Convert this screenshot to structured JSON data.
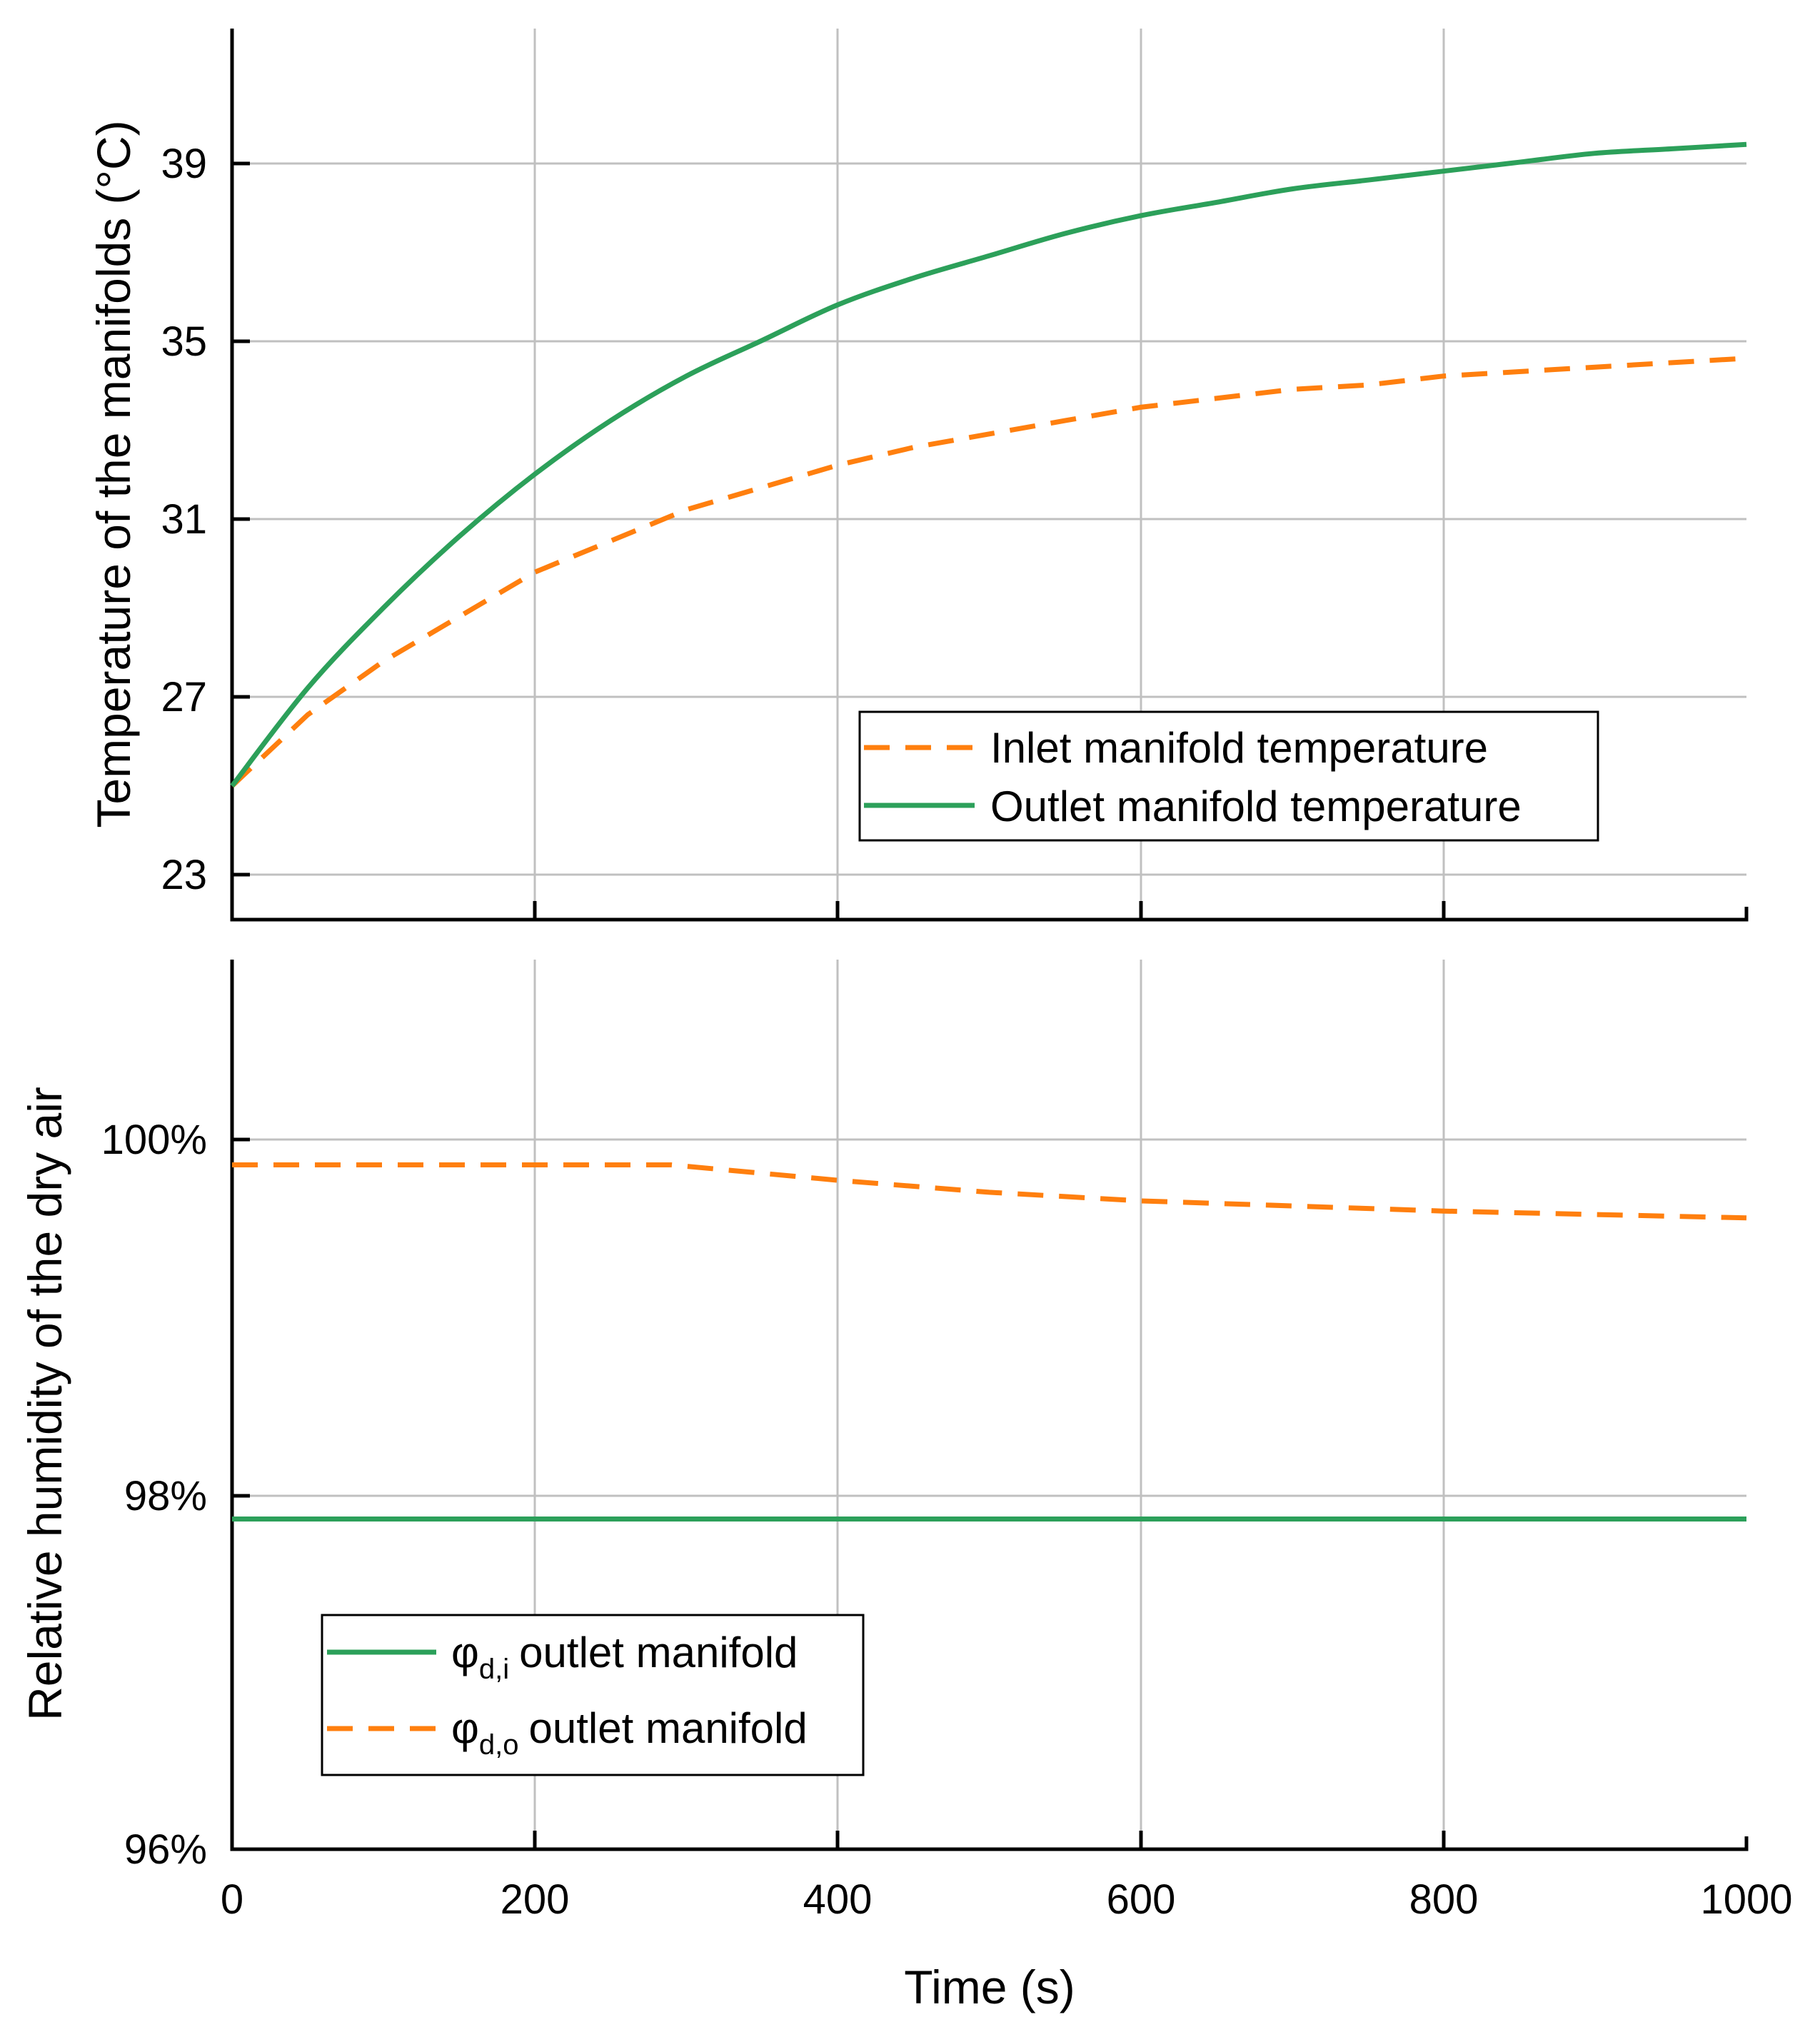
{
  "chart_data": [
    {
      "type": "line",
      "xlabel": "",
      "ylabel": "Temperature of the manifolds (°C)",
      "xlim": [
        0,
        1000
      ],
      "ylim": [
        22,
        42
      ],
      "xticks": [
        0,
        200,
        400,
        600,
        800,
        1000
      ],
      "yticks": [
        23,
        27,
        31,
        35,
        39
      ],
      "ytick_labels": [
        "23",
        "27",
        "31",
        "35",
        "39"
      ],
      "grid": true,
      "legend_position": "bottom-right",
      "series": [
        {
          "name": "Inlet manifold temperature",
          "style": "dashed",
          "color": "#ff7f0e",
          "x": [
            0,
            50,
            100,
            150,
            200,
            250,
            300,
            350,
            400,
            450,
            500,
            550,
            600,
            650,
            700,
            750,
            800,
            850,
            900,
            950,
            1000
          ],
          "y": [
            25.0,
            26.6,
            27.8,
            28.8,
            29.8,
            30.5,
            31.2,
            31.7,
            32.2,
            32.6,
            32.9,
            33.2,
            33.5,
            33.7,
            33.9,
            34.0,
            34.2,
            34.3,
            34.4,
            34.5,
            34.6
          ]
        },
        {
          "name": "Outlet manifold temperature",
          "style": "solid",
          "color": "#2ca05a",
          "x": [
            0,
            50,
            100,
            150,
            200,
            250,
            300,
            350,
            400,
            450,
            500,
            550,
            600,
            650,
            700,
            750,
            800,
            850,
            900,
            950,
            1000
          ],
          "y": [
            25.0,
            27.2,
            29.0,
            30.6,
            32.0,
            33.2,
            34.2,
            35.0,
            35.8,
            36.4,
            36.9,
            37.4,
            37.8,
            38.1,
            38.4,
            38.6,
            38.8,
            39.0,
            39.2,
            39.3,
            39.4
          ]
        }
      ]
    },
    {
      "type": "line",
      "xlabel": "Time (s)",
      "ylabel": "Relative humidity of the dry air",
      "xlim": [
        0,
        1000
      ],
      "ylim": [
        96,
        101.2
      ],
      "xticks": [
        0,
        200,
        400,
        600,
        800,
        1000
      ],
      "xtick_labels": [
        "0",
        "200",
        "400",
        "600",
        "800",
        "1000"
      ],
      "yticks": [
        96,
        98,
        100
      ],
      "ytick_labels": [
        "96%",
        "98%",
        "100%"
      ],
      "grid": true,
      "legend_position": "bottom-left",
      "series": [
        {
          "name": "outlet manifold",
          "label_symbol": "φ",
          "label_subscript": "d,i",
          "style": "solid",
          "color": "#2ca05a",
          "x": [
            0,
            1000
          ],
          "y": [
            97.93,
            97.93
          ]
        },
        {
          "name": "outlet manifold",
          "label_symbol": "φ",
          "label_subscript": "d,o",
          "style": "dashed",
          "color": "#ff7f0e",
          "x": [
            0,
            290,
            400,
            500,
            600,
            700,
            800,
            900,
            1000
          ],
          "y": [
            100.0,
            100.0,
            99.91,
            99.84,
            99.79,
            99.76,
            99.73,
            99.71,
            99.69
          ]
        }
      ]
    }
  ]
}
